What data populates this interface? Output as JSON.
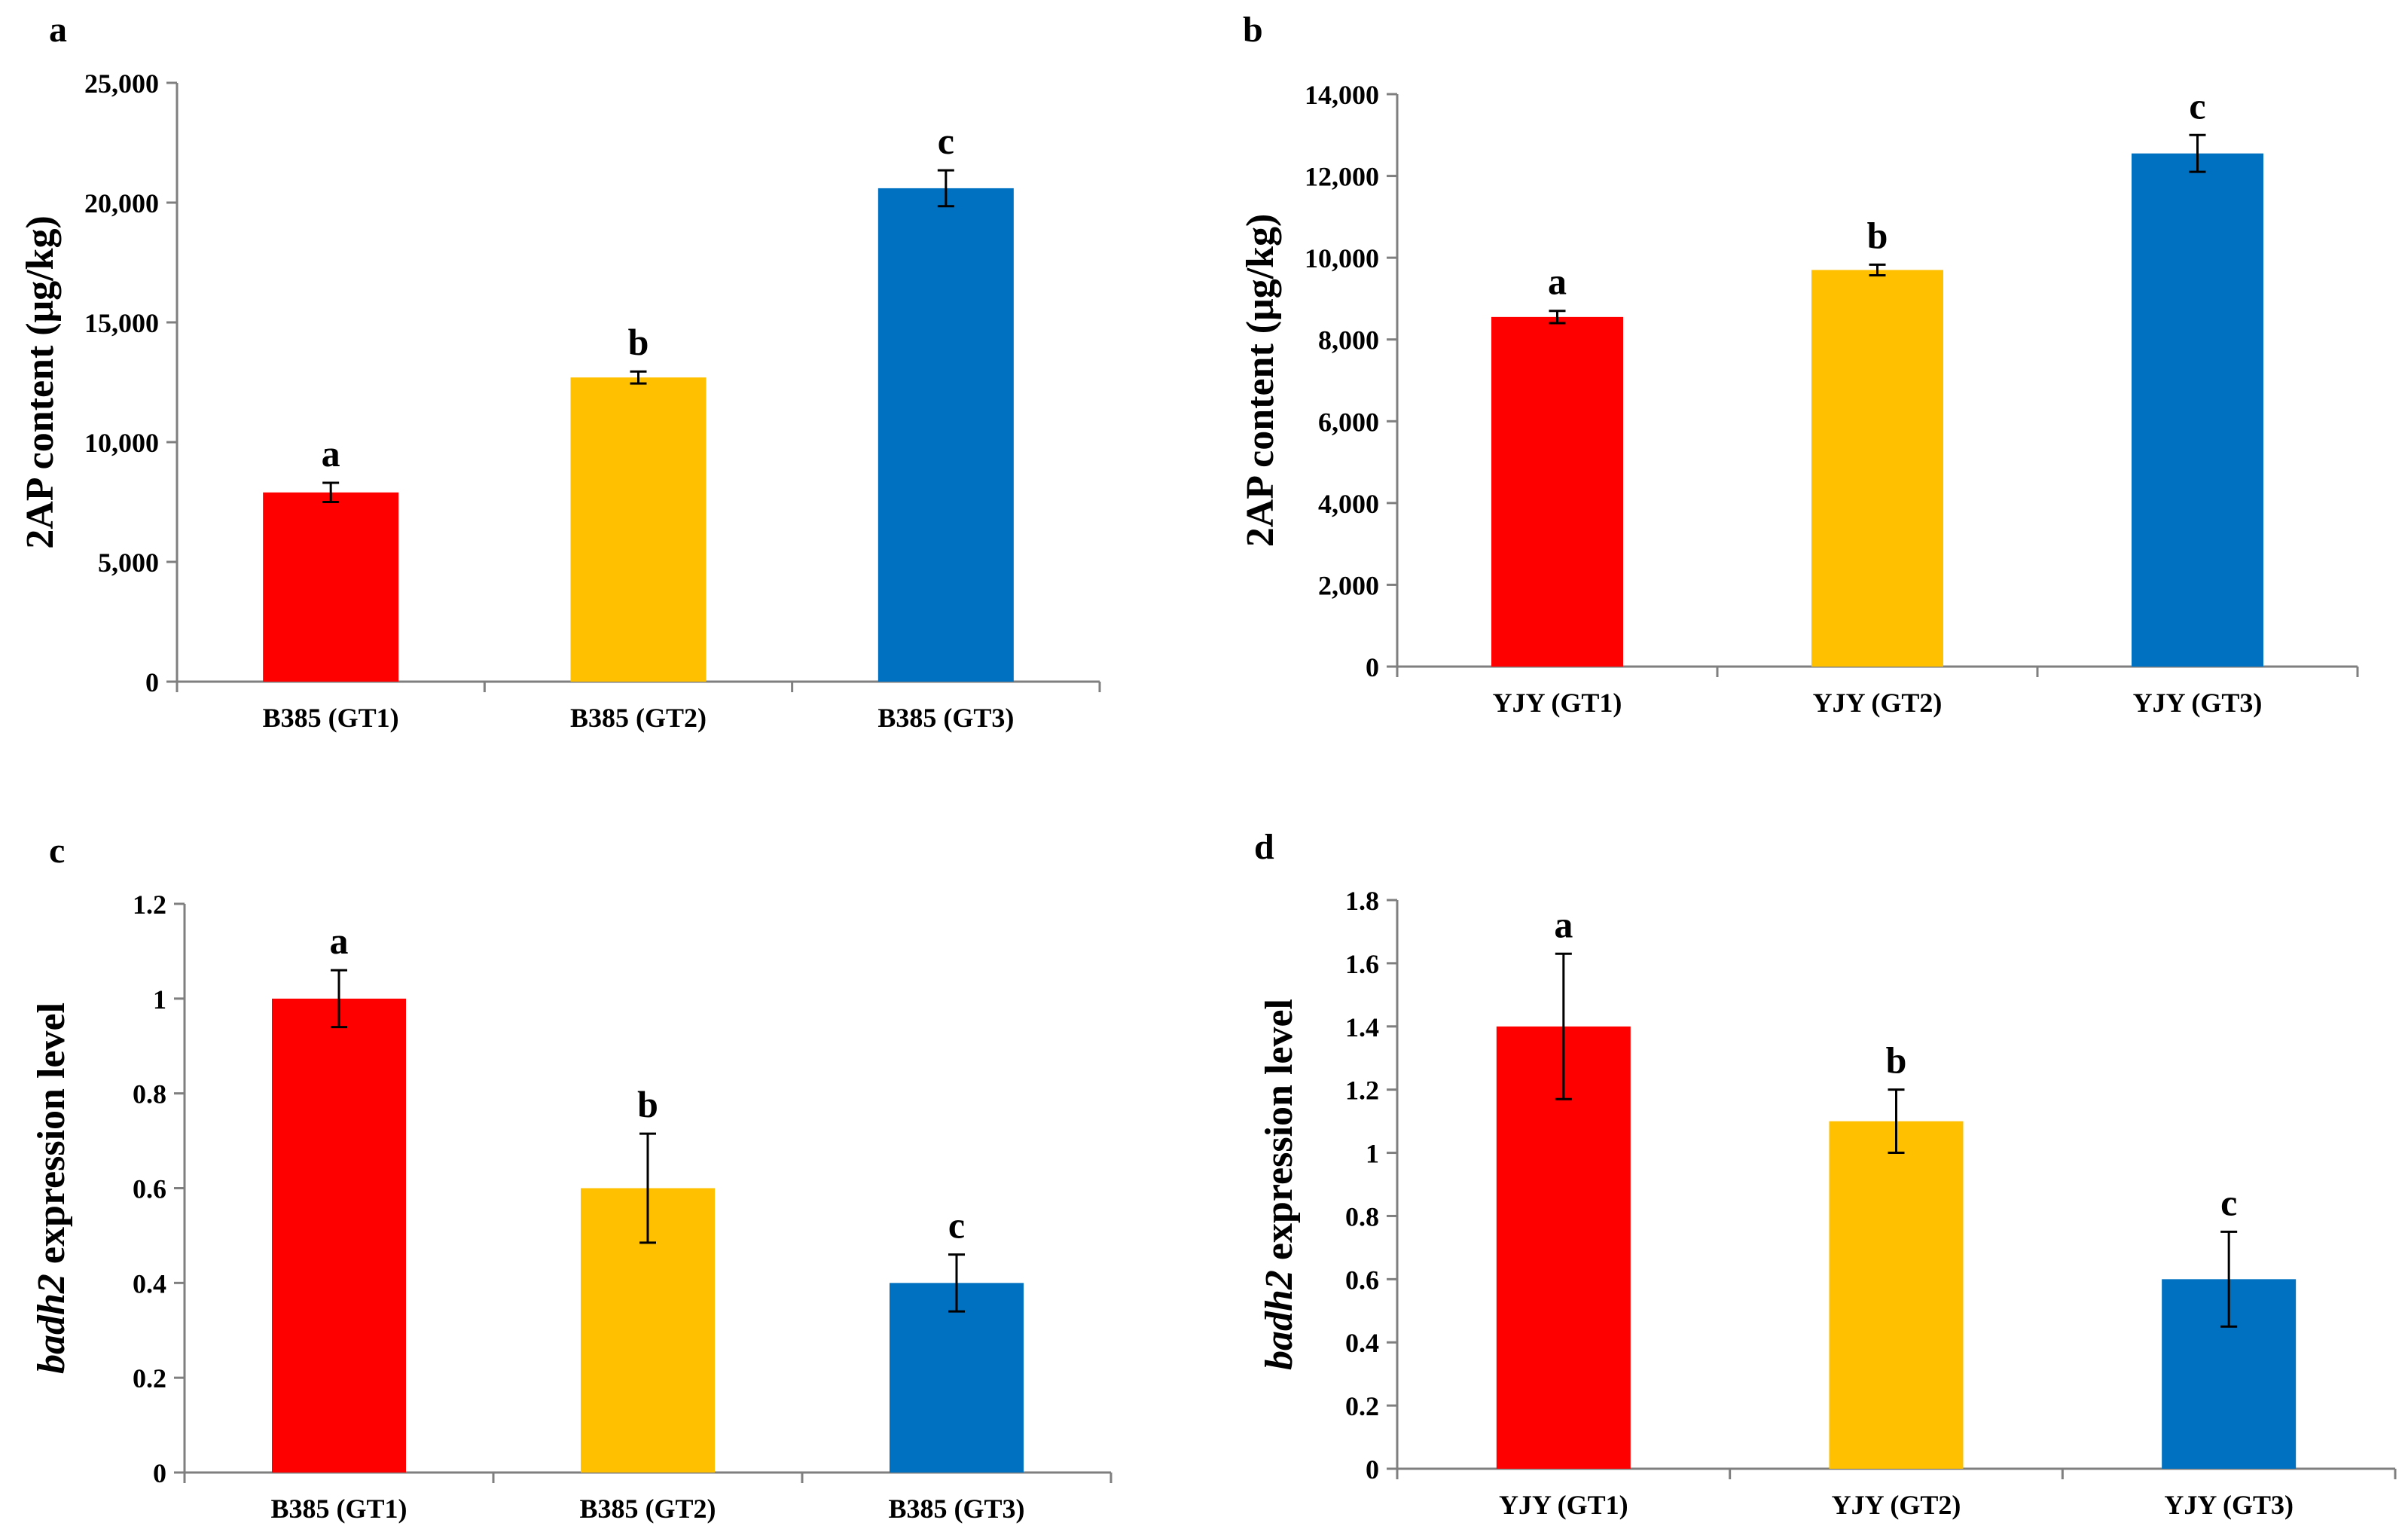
{
  "figure": {
    "colors": {
      "GT1": "#ff0000",
      "GT2": "#ffc000",
      "GT3": "#0070c0",
      "axis": "#7f7f7f",
      "text": "#000000"
    }
  },
  "chart_data": [
    {
      "panel": "a",
      "type": "bar",
      "categories": [
        "B385 (GT1)",
        "B385 (GT2)",
        "B385 (GT3)"
      ],
      "values": [
        7900,
        12700,
        20600
      ],
      "errors": [
        400,
        250,
        750
      ],
      "significance": [
        "a",
        "b",
        "c"
      ],
      "ylabel": "2AP content (μg/kg)",
      "ylabel_italic": "",
      "ylim": [
        0,
        25000
      ],
      "yticks": [
        0,
        5000,
        10000,
        15000,
        20000,
        25000
      ],
      "ytick_labels": [
        "0",
        "5,000",
        "10,000",
        "15,000",
        "20,000",
        "25,000"
      ],
      "grid": false
    },
    {
      "panel": "b",
      "type": "bar",
      "categories": [
        "YJY (GT1)",
        "YJY (GT2)",
        "YJY (GT3)"
      ],
      "values": [
        8550,
        9700,
        12550
      ],
      "errors": [
        150,
        130,
        450
      ],
      "significance": [
        "a",
        "b",
        "c"
      ],
      "ylabel": "2AP content (μg/kg)",
      "ylabel_italic": "",
      "ylim": [
        0,
        14000
      ],
      "yticks": [
        0,
        2000,
        4000,
        6000,
        8000,
        10000,
        12000,
        14000
      ],
      "ytick_labels": [
        "0",
        "2,000",
        "4,000",
        "6,000",
        "8,000",
        "10,000",
        "12,000",
        "14,000"
      ],
      "grid": false
    },
    {
      "panel": "c",
      "type": "bar",
      "categories": [
        "B385 (GT1)",
        "B385 (GT2)",
        "B385 (GT3)"
      ],
      "values": [
        1.0,
        0.6,
        0.4
      ],
      "errors": [
        0.06,
        0.115,
        0.06
      ],
      "significance": [
        "a",
        "b",
        "c"
      ],
      "ylabel": "expression level",
      "ylabel_italic": "badh2",
      "ylim": [
        0,
        1.2
      ],
      "yticks": [
        0,
        0.2,
        0.4,
        0.6,
        0.8,
        1.0,
        1.2
      ],
      "ytick_labels": [
        "0",
        "0.2",
        "0.4",
        "0.6",
        "0.8",
        "1",
        "1.2"
      ],
      "grid": false
    },
    {
      "panel": "d",
      "type": "bar",
      "categories": [
        "YJY (GT1)",
        "YJY (GT2)",
        "YJY (GT3)"
      ],
      "values": [
        1.4,
        1.1,
        0.6
      ],
      "errors": [
        0.23,
        0.1,
        0.15
      ],
      "significance": [
        "a",
        "b",
        "c"
      ],
      "ylabel": "expression level",
      "ylabel_italic": "badh2",
      "ylim": [
        0,
        1.8
      ],
      "yticks": [
        0,
        0.2,
        0.4,
        0.6,
        0.8,
        1.0,
        1.2,
        1.4,
        1.6,
        1.8
      ],
      "ytick_labels": [
        "0",
        "0.2",
        "0.4",
        "0.6",
        "0.8",
        "1",
        "1.2",
        "1.4",
        "1.6",
        "1.8"
      ],
      "grid": false
    }
  ]
}
